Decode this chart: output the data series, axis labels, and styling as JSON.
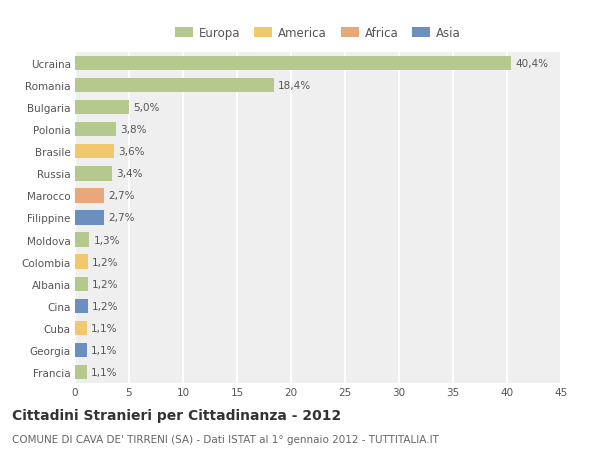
{
  "countries": [
    "Ucraina",
    "Romania",
    "Bulgaria",
    "Polonia",
    "Brasile",
    "Russia",
    "Marocco",
    "Filippine",
    "Moldova",
    "Colombia",
    "Albania",
    "Cina",
    "Cuba",
    "Georgia",
    "Francia"
  ],
  "values": [
    40.4,
    18.4,
    5.0,
    3.8,
    3.6,
    3.4,
    2.7,
    2.7,
    1.3,
    1.2,
    1.2,
    1.2,
    1.1,
    1.1,
    1.1
  ],
  "labels": [
    "40,4%",
    "18,4%",
    "5,0%",
    "3,8%",
    "3,6%",
    "3,4%",
    "2,7%",
    "2,7%",
    "1,3%",
    "1,2%",
    "1,2%",
    "1,2%",
    "1,1%",
    "1,1%",
    "1,1%"
  ],
  "continents": [
    "Europa",
    "Europa",
    "Europa",
    "Europa",
    "America",
    "Europa",
    "Africa",
    "Asia",
    "Europa",
    "America",
    "Europa",
    "Asia",
    "America",
    "Asia",
    "Europa"
  ],
  "continent_colors": {
    "Europa": "#b5c98e",
    "America": "#f0c96e",
    "Africa": "#e8a87c",
    "Asia": "#6b8fbf"
  },
  "legend_order": [
    "Europa",
    "America",
    "Africa",
    "Asia"
  ],
  "legend_colors": [
    "#b5c98e",
    "#f0c96e",
    "#e8a87c",
    "#6b8fbf"
  ],
  "xlim": [
    0,
    45
  ],
  "xticks": [
    0,
    5,
    10,
    15,
    20,
    25,
    30,
    35,
    40,
    45
  ],
  "title": "Cittadini Stranieri per Cittadinanza - 2012",
  "subtitle": "COMUNE DI CAVA DE' TIRRENI (SA) - Dati ISTAT al 1° gennaio 2012 - TUTTITALIA.IT",
  "background_color": "#ffffff",
  "plot_bg_color": "#efefef",
  "grid_color": "#ffffff",
  "bar_height": 0.65,
  "label_fontsize": 7.5,
  "tick_fontsize": 7.5,
  "title_fontsize": 10,
  "subtitle_fontsize": 7.5
}
